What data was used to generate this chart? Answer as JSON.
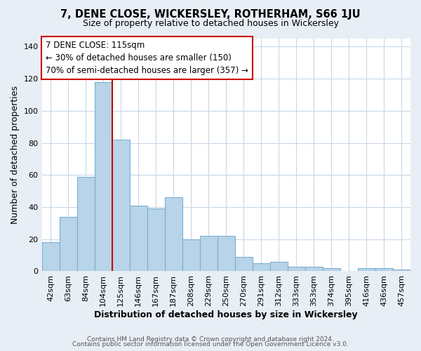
{
  "title": "7, DENE CLOSE, WICKERSLEY, ROTHERHAM, S66 1JU",
  "subtitle": "Size of property relative to detached houses in Wickersley",
  "xlabel": "Distribution of detached houses by size in Wickersley",
  "ylabel": "Number of detached properties",
  "footer_line1": "Contains HM Land Registry data © Crown copyright and database right 2024.",
  "footer_line2": "Contains public sector information licensed under the Open Government Licence v3.0.",
  "categories": [
    "42sqm",
    "63sqm",
    "84sqm",
    "104sqm",
    "125sqm",
    "146sqm",
    "167sqm",
    "187sqm",
    "208sqm",
    "229sqm",
    "250sqm",
    "270sqm",
    "291sqm",
    "312sqm",
    "333sqm",
    "353sqm",
    "374sqm",
    "395sqm",
    "416sqm",
    "436sqm",
    "457sqm"
  ],
  "values": [
    18,
    34,
    59,
    118,
    82,
    41,
    39,
    46,
    20,
    22,
    22,
    9,
    5,
    6,
    3,
    3,
    2,
    0,
    2,
    2,
    1
  ],
  "bar_color": "#b8d4e8",
  "bar_edge_color": "#7bafd4",
  "vline_color": "#cc0000",
  "vline_position": 3.5,
  "ylim": [
    0,
    145
  ],
  "yticks": [
    0,
    20,
    40,
    60,
    80,
    100,
    120,
    140
  ],
  "annotation_title": "7 DENE CLOSE: 115sqm",
  "annotation_line1": "← 30% of detached houses are smaller (150)",
  "annotation_line2": "70% of semi-detached houses are larger (357) →",
  "annotation_box_facecolor": "#ffffff",
  "annotation_box_edgecolor": "#cc0000",
  "bg_color": "#e8eef5",
  "plot_bg_color": "#ffffff",
  "grid_color": "#c8d8e8"
}
